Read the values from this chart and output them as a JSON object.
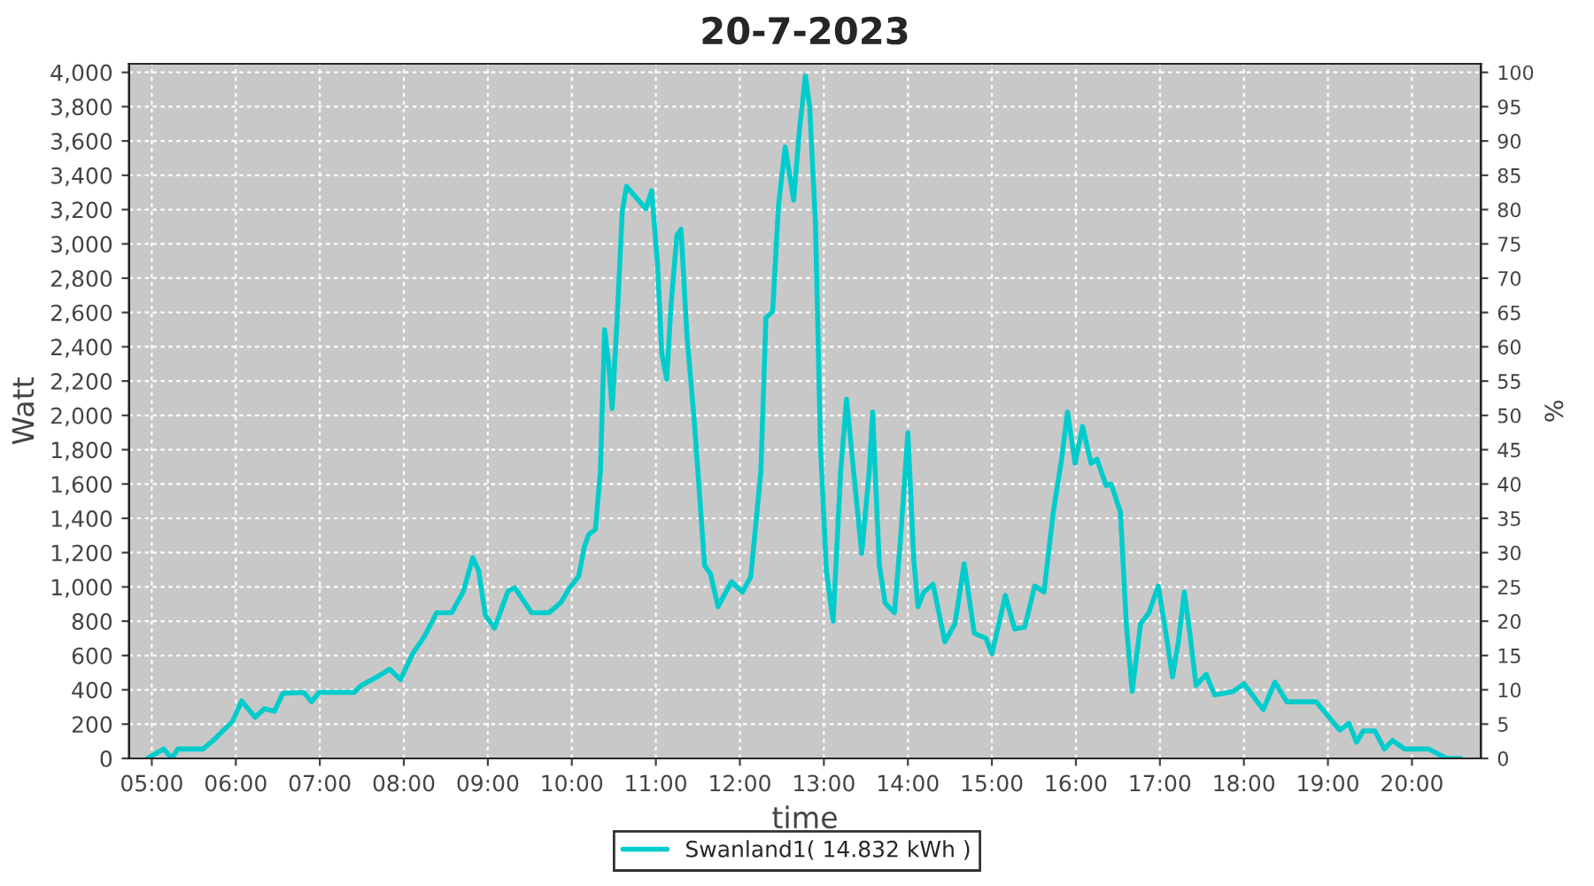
{
  "chart_data": {
    "type": "line",
    "title": "20-7-2023",
    "xlabel": "time",
    "ylabel": "Watt",
    "y2label": "%",
    "series": [
      {
        "name": "Swanland1( 14.832 kWh )",
        "color": "#00cccc",
        "x": [
          4.95,
          5.14,
          5.24,
          5.31,
          5.61,
          5.72,
          5.96,
          6.07,
          6.23,
          6.34,
          6.46,
          6.56,
          6.81,
          6.9,
          6.99,
          7.41,
          7.49,
          7.68,
          7.83,
          7.96,
          8.11,
          8.25,
          8.39,
          8.57,
          8.71,
          8.82,
          8.89,
          8.97,
          9.08,
          9.24,
          9.32,
          9.52,
          9.73,
          9.87,
          9.98,
          10.08,
          10.15,
          10.2,
          10.28,
          10.34,
          10.39,
          10.44,
          10.48,
          10.54,
          10.6,
          10.65,
          10.88,
          10.95,
          11.02,
          11.07,
          11.13,
          11.18,
          11.25,
          11.3,
          11.37,
          11.46,
          11.58,
          11.65,
          11.74,
          11.9,
          12.03,
          12.13,
          12.25,
          12.31,
          12.39,
          12.46,
          12.54,
          12.64,
          12.71,
          12.78,
          12.83,
          12.9,
          12.96,
          13.03,
          13.11,
          13.2,
          13.27,
          13.34,
          13.45,
          13.54,
          13.58,
          13.66,
          13.73,
          13.84,
          13.91,
          14.0,
          14.07,
          14.12,
          14.19,
          14.3,
          14.44,
          14.56,
          14.67,
          14.79,
          14.93,
          15.0,
          15.16,
          15.27,
          15.39,
          15.51,
          15.62,
          15.73,
          15.83,
          15.9,
          15.99,
          16.08,
          16.18,
          16.25,
          16.36,
          16.42,
          16.53,
          16.6,
          16.67,
          16.77,
          16.87,
          16.98,
          17.06,
          17.15,
          17.22,
          17.29,
          17.36,
          17.43,
          17.55,
          17.65,
          17.87,
          18.0,
          18.23,
          18.37,
          18.51,
          18.86,
          19.14,
          19.25,
          19.34,
          19.42,
          19.56,
          19.67,
          19.77,
          19.91,
          20.2,
          20.41,
          20.58
        ],
        "values": [
          0,
          55,
          0,
          55,
          55,
          100,
          215,
          335,
          240,
          290,
          275,
          380,
          385,
          330,
          385,
          385,
          425,
          475,
          520,
          460,
          615,
          715,
          850,
          850,
          975,
          1170,
          1095,
          835,
          760,
          975,
          995,
          850,
          850,
          910,
          1000,
          1060,
          1235,
          1305,
          1335,
          1675,
          2500,
          2295,
          2040,
          2570,
          3190,
          3335,
          3205,
          3310,
          2880,
          2365,
          2210,
          2640,
          3050,
          3085,
          2465,
          1950,
          1125,
          1075,
          885,
          1030,
          970,
          1060,
          1675,
          2570,
          2605,
          3225,
          3565,
          3255,
          3670,
          3980,
          3805,
          3120,
          1815,
          1095,
          800,
          1675,
          2095,
          1745,
          1195,
          1675,
          2020,
          1125,
          905,
          850,
          1265,
          1900,
          1160,
          885,
          970,
          1015,
          680,
          785,
          1135,
          730,
          700,
          610,
          950,
          755,
          765,
          1005,
          970,
          1435,
          1745,
          2020,
          1720,
          1935,
          1720,
          1745,
          1590,
          1600,
          1435,
          785,
          390,
          785,
          850,
          1005,
          765,
          475,
          680,
          970,
          715,
          425,
          490,
          370,
          390,
          435,
          285,
          445,
          330,
          330,
          165,
          205,
          95,
          160,
          160,
          55,
          105,
          55,
          55,
          0,
          0
        ]
      }
    ],
    "xlim": [
      4.73,
      20.82
    ],
    "xticks": [
      {
        "value": 5,
        "label": "05:00"
      },
      {
        "value": 6,
        "label": "06:00"
      },
      {
        "value": 7,
        "label": "07:00"
      },
      {
        "value": 8,
        "label": "08:00"
      },
      {
        "value": 9,
        "label": "09:00"
      },
      {
        "value": 10,
        "label": "10:00"
      },
      {
        "value": 11,
        "label": "11:00"
      },
      {
        "value": 12,
        "label": "12:00"
      },
      {
        "value": 13,
        "label": "13:00"
      },
      {
        "value": 14,
        "label": "14:00"
      },
      {
        "value": 15,
        "label": "15:00"
      },
      {
        "value": 16,
        "label": "16:00"
      },
      {
        "value": 17,
        "label": "17:00"
      },
      {
        "value": 18,
        "label": "18:00"
      },
      {
        "value": 19,
        "label": "19:00"
      },
      {
        "value": 20,
        "label": "20:00"
      }
    ],
    "ylim": [
      0,
      4050
    ],
    "yticks": [
      0,
      200,
      400,
      600,
      800,
      {
        "value": 1000,
        "label": "1,000"
      },
      {
        "value": 1200,
        "label": "1,200"
      },
      {
        "value": 1400,
        "label": "1,400"
      },
      {
        "value": 1600,
        "label": "1,600"
      },
      {
        "value": 1800,
        "label": "1,800"
      },
      {
        "value": 2000,
        "label": "2,000"
      },
      {
        "value": 2200,
        "label": "2,200"
      },
      {
        "value": 2400,
        "label": "2,400"
      },
      {
        "value": 2600,
        "label": "2,600"
      },
      {
        "value": 2800,
        "label": "2,800"
      },
      {
        "value": 3000,
        "label": "3,000"
      },
      {
        "value": 3200,
        "label": "3,200"
      },
      {
        "value": 3400,
        "label": "3,400"
      },
      {
        "value": 3600,
        "label": "3,600"
      },
      {
        "value": 3800,
        "label": "3,800"
      },
      {
        "value": 4000,
        "label": "4,000"
      }
    ],
    "y2lim": [
      0,
      101.25
    ],
    "y2ticks": [
      0,
      5,
      10,
      15,
      20,
      25,
      30,
      35,
      40,
      45,
      50,
      55,
      60,
      65,
      70,
      75,
      80,
      85,
      90,
      95,
      100
    ],
    "grid": true,
    "legend": "bottom",
    "marker": "none",
    "line_style": "solid"
  }
}
